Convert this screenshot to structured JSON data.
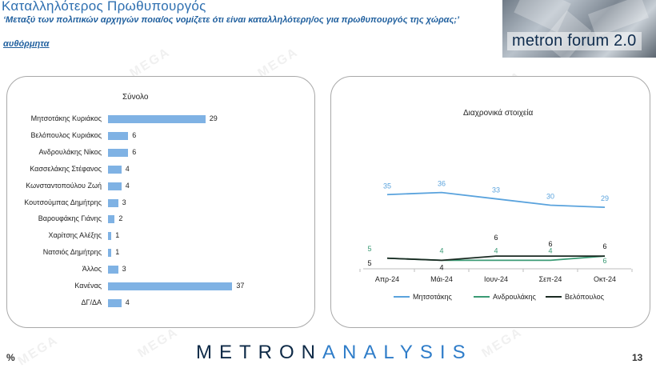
{
  "header": {
    "title": "Καταλληλότερος Πρωθυπουργός",
    "question": "‘Μεταξύ των πολιτικών αρχηγών ποια/ος νομίζετε ότι είναι καταλληλότερη/ος για πρωθυπουργός της χώρας;’",
    "note": "αυθόρμητα"
  },
  "logo": {
    "text": "metron forum 2.0"
  },
  "colors": {
    "bar": "#7fb2e4",
    "series_mitsotakis": "#5aa3dd",
    "series_androulakis": "#3a9a74",
    "series_velopoulos": "#1a2a22",
    "title": "#2e6fb0"
  },
  "footer": {
    "brand_part1": "METRON",
    "brand_part2": "ANALYSIS",
    "percent_sign": "%",
    "page_number": "13"
  },
  "chart_data": [
    {
      "type": "bar",
      "orientation": "horizontal",
      "title": "Σύνολο",
      "categories": [
        "Μητσοτάκης Κυριάκος",
        "Βελόπουλος Κυριάκος",
        "Ανδρουλάκης Νίκος",
        "Κασσελάκης Στέφανος",
        "Κωνσταντοπούλου Ζωή",
        "Κουτσούμπας Δημήτρης",
        "Βαρουφάκης Γιάνης",
        "Χαρίτσης Αλέξης",
        "Νατσιός Δημήτρης",
        "Άλλος",
        "Κανένας",
        "ΔΓ/ΔΑ"
      ],
      "values": [
        29,
        6,
        6,
        4,
        4,
        3,
        2,
        1,
        1,
        3,
        37,
        4
      ],
      "xlim": [
        0,
        40
      ]
    },
    {
      "type": "line",
      "title": "Διαχρονικά στοιχεία",
      "x": [
        "Απρ-24",
        "Μάι-24",
        "Ιουν-24",
        "Σεπ-24",
        "Οκτ-24"
      ],
      "series": [
        {
          "name": "Μητσοτάκης",
          "values": [
            35,
            36,
            33,
            30,
            29
          ]
        },
        {
          "name": "Ανδρουλάκης",
          "values": [
            5,
            4,
            4,
            4,
            6
          ]
        },
        {
          "name": "Βελόπουλος",
          "values": [
            5,
            4,
            6,
            6,
            6
          ]
        }
      ],
      "ylim": [
        0,
        40
      ],
      "legend": "bottom"
    }
  ]
}
